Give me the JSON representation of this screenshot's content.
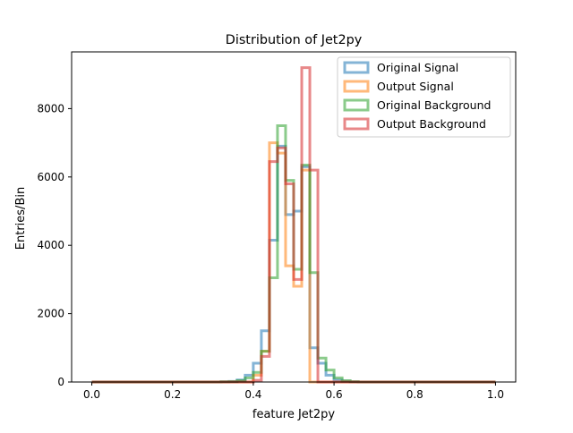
{
  "chart_data": {
    "type": "step-histogram",
    "title": "Distribution of Jet2py",
    "xlabel": "feature Jet2py",
    "ylabel": "Entries/Bin",
    "xlim": [
      -0.05,
      1.05
    ],
    "ylim": [
      0,
      9660
    ],
    "xticks": [
      0.0,
      0.2,
      0.4,
      0.6,
      0.8,
      1.0
    ],
    "xtick_labels": [
      "0.0",
      "0.2",
      "0.4",
      "0.6",
      "0.8",
      "1.0"
    ],
    "yticks": [
      0,
      2000,
      4000,
      6000,
      8000
    ],
    "ytick_labels": [
      "0",
      "2000",
      "4000",
      "6000",
      "8000"
    ],
    "grid": false,
    "legend_position": "top-right",
    "bin_edges": [
      0.0,
      0.02,
      0.04,
      0.06,
      0.08,
      0.1,
      0.12,
      0.14,
      0.16,
      0.18,
      0.2,
      0.22,
      0.24,
      0.26,
      0.28,
      0.3,
      0.32,
      0.34,
      0.36,
      0.38,
      0.4,
      0.42,
      0.44,
      0.46,
      0.48,
      0.5,
      0.52,
      0.54,
      0.56,
      0.58,
      0.6,
      0.62,
      0.64,
      0.66,
      0.68,
      0.7,
      0.72,
      0.74,
      0.76,
      0.78,
      0.8,
      0.82,
      0.84,
      0.86,
      0.88,
      0.9,
      0.92,
      0.94,
      0.96,
      0.98,
      1.0
    ],
    "series": [
      {
        "name": "Original Signal",
        "color": "#1f77b4",
        "values": [
          0,
          0,
          0,
          0,
          0,
          0,
          0,
          0,
          0,
          0,
          0,
          0,
          0,
          0,
          0,
          0,
          5,
          15,
          60,
          200,
          550,
          1500,
          4150,
          6900,
          4900,
          5000,
          6300,
          1000,
          550,
          200,
          60,
          20,
          5,
          0,
          0,
          0,
          0,
          0,
          0,
          0,
          0,
          0,
          0,
          0,
          0,
          0,
          0,
          0,
          0,
          0
        ]
      },
      {
        "name": "Output Signal",
        "color": "#ff7f0e",
        "values": [
          0,
          0,
          0,
          0,
          0,
          0,
          0,
          0,
          0,
          0,
          0,
          0,
          0,
          0,
          0,
          0,
          0,
          0,
          0,
          0,
          200,
          900,
          7000,
          6700,
          3400,
          2800,
          6200,
          0,
          0,
          0,
          0,
          0,
          0,
          0,
          0,
          0,
          0,
          0,
          0,
          0,
          0,
          0,
          0,
          0,
          0,
          0,
          0,
          0,
          0,
          0
        ]
      },
      {
        "name": "Original Background",
        "color": "#2ca02c",
        "values": [
          0,
          0,
          0,
          0,
          0,
          0,
          0,
          0,
          0,
          0,
          0,
          0,
          0,
          0,
          0,
          0,
          5,
          10,
          40,
          120,
          280,
          900,
          3050,
          7500,
          5900,
          3300,
          6350,
          3200,
          700,
          350,
          120,
          40,
          10,
          0,
          0,
          0,
          0,
          0,
          0,
          0,
          0,
          0,
          0,
          0,
          0,
          0,
          0,
          0,
          0,
          0
        ]
      },
      {
        "name": "Output Background",
        "color": "#d62728",
        "values": [
          0,
          0,
          0,
          0,
          0,
          0,
          0,
          0,
          0,
          0,
          0,
          0,
          0,
          0,
          0,
          0,
          0,
          0,
          0,
          0,
          50,
          750,
          6450,
          6850,
          5800,
          3000,
          9200,
          6200,
          0,
          0,
          0,
          0,
          0,
          0,
          0,
          0,
          0,
          0,
          0,
          0,
          0,
          0,
          0,
          0,
          0,
          0,
          0,
          0,
          0,
          0
        ]
      }
    ]
  }
}
